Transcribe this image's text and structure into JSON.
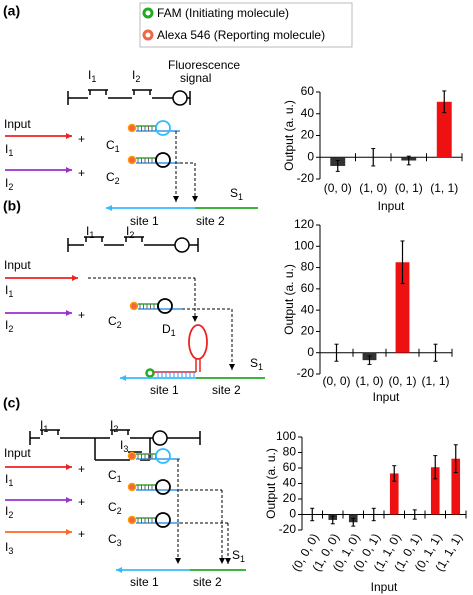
{
  "legend": {
    "fam": "FAM (Initiating molecule)",
    "alexa": "Alexa 546 (Reporting molecule)"
  },
  "panels": [
    {
      "label": "(a)",
      "switches": [
        {
          "text": "I",
          "sub": "1"
        },
        {
          "text": "I",
          "sub": "2"
        }
      ],
      "signal": [
        "Fluorescence",
        "signal"
      ],
      "input": "Input",
      "plus": "+",
      "inputs": [
        {
          "text": "I",
          "sub": "1"
        },
        {
          "text": "I",
          "sub": "2"
        }
      ],
      "gates": [
        {
          "text": "C",
          "sub": "1"
        },
        {
          "text": "C",
          "sub": "2"
        }
      ],
      "substrate": {
        "text": "S",
        "sub": "1"
      },
      "sites": [
        "site 1",
        "site 2"
      ]
    },
    {
      "label": "(b)",
      "switches": [
        {
          "text": "I",
          "sub": "1"
        },
        {
          "text": "I",
          "sub": "2"
        }
      ],
      "input": "Input",
      "plus": "+",
      "inputs": [
        {
          "text": "I",
          "sub": "1"
        },
        {
          "text": "I",
          "sub": "2"
        }
      ],
      "gates": [
        {
          "text": "C",
          "sub": "2"
        }
      ],
      "helper": {
        "text": "D",
        "sub": "1"
      },
      "substrate": {
        "text": "S",
        "sub": "1"
      },
      "sites": [
        "site 1",
        "site 2"
      ]
    },
    {
      "label": "(c)",
      "switches": [
        {
          "text": "I",
          "sub": "1"
        },
        {
          "text": "I",
          "sub": "2"
        },
        {
          "text": "I",
          "sub": "3"
        }
      ],
      "input": "Input",
      "plus": "+",
      "inputs": [
        {
          "text": "I",
          "sub": "1"
        },
        {
          "text": "I",
          "sub": "2"
        },
        {
          "text": "I",
          "sub": "3"
        }
      ],
      "gates": [
        {
          "text": "C",
          "sub": "1"
        },
        {
          "text": "C",
          "sub": "2"
        },
        {
          "text": "C",
          "sub": "3"
        }
      ],
      "substrate": {
        "text": "S",
        "sub": "1"
      },
      "sites": [
        "site 1",
        "site 2"
      ]
    }
  ],
  "chart_data": [
    {
      "type": "bar",
      "ylabel": "Output (a. u.)",
      "xlabel": "Input",
      "categories": [
        "(0, 0)",
        "(1, 0)",
        "(0, 1)",
        "(1, 1)"
      ],
      "values": [
        -8,
        0,
        -3,
        51
      ],
      "errors": [
        5,
        8,
        4,
        10
      ],
      "colors": [
        "#333333",
        "#333333",
        "#333333",
        "#ee1111"
      ],
      "ylim": [
        -20,
        60
      ],
      "yticks": [
        -20,
        0,
        20,
        40,
        60
      ]
    },
    {
      "type": "bar",
      "ylabel": "Output (a. u.)",
      "xlabel": "Input",
      "categories": [
        "(0, 0)",
        "(1, 0)",
        "(0, 1)",
        "(1, 1)"
      ],
      "values": [
        0,
        -7,
        85,
        0
      ],
      "errors": [
        8,
        4,
        20,
        8
      ],
      "colors": [
        "#333333",
        "#333333",
        "#ee1111",
        "#333333"
      ],
      "ylim": [
        -20,
        120
      ],
      "yticks": [
        -20,
        0,
        20,
        40,
        60,
        80,
        100,
        120
      ]
    },
    {
      "type": "bar",
      "ylabel": "Output (a. u.)",
      "xlabel": "Input",
      "categories": [
        "(0, 0, 0)",
        "(1, 0, 0)",
        "(0, 1, 0)",
        "(0, 0, 1)",
        "(1, 1, 0)",
        "(1, 0, 1)",
        "(0, 1, 1)",
        "(1, 1, 1)"
      ],
      "values": [
        0,
        -7,
        -10,
        0,
        53,
        0,
        61,
        72
      ],
      "errors": [
        8,
        5,
        5,
        8,
        10,
        6,
        15,
        18
      ],
      "colors": [
        "#333333",
        "#333333",
        "#333333",
        "#333333",
        "#ee1111",
        "#333333",
        "#ee1111",
        "#ee1111"
      ],
      "ylim": [
        -20,
        100
      ],
      "yticks": [
        -20,
        0,
        20,
        40,
        60,
        80,
        100
      ]
    }
  ]
}
